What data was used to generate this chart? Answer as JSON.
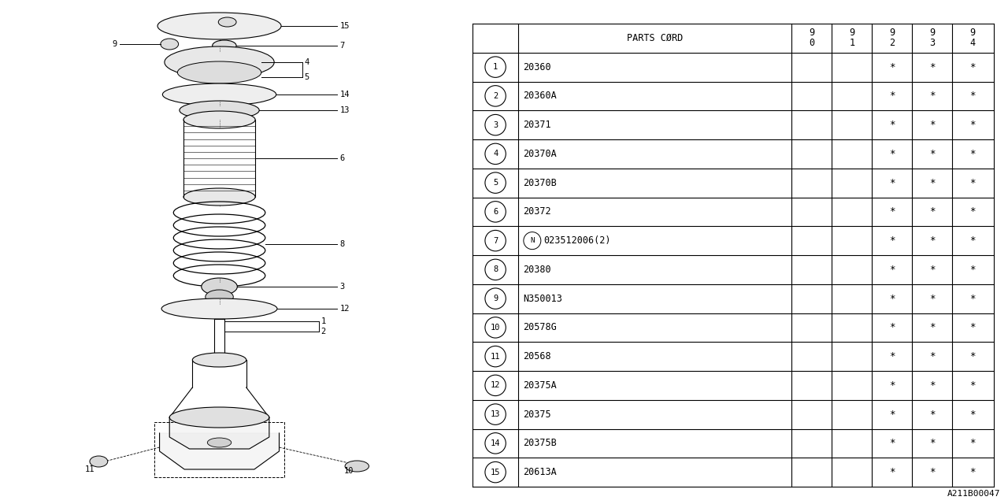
{
  "bg_color": "#ffffff",
  "line_color": "#000000",
  "text_color": "#000000",
  "diagram_label": "A211B00047",
  "table": {
    "header": [
      "",
      "PARTS CØRD",
      "9\n0",
      "9\n1",
      "9\n2",
      "9\n3",
      "9\n4"
    ],
    "rows": [
      [
        "1",
        "20360",
        "",
        "",
        "*",
        "*",
        "*"
      ],
      [
        "2",
        "20360A",
        "",
        "",
        "*",
        "*",
        "*"
      ],
      [
        "3",
        "20371",
        "",
        "",
        "*",
        "*",
        "*"
      ],
      [
        "4",
        "20370A",
        "",
        "",
        "*",
        "*",
        "*"
      ],
      [
        "5",
        "20370B",
        "",
        "",
        "*",
        "*",
        "*"
      ],
      [
        "6",
        "20372",
        "",
        "",
        "*",
        "*",
        "*"
      ],
      [
        "7",
        "023512006(2)",
        "",
        "",
        "*",
        "*",
        "*"
      ],
      [
        "8",
        "20380",
        "",
        "",
        "*",
        "*",
        "*"
      ],
      [
        "9",
        "N350013",
        "",
        "",
        "*",
        "*",
        "*"
      ],
      [
        "10",
        "20578G",
        "",
        "",
        "*",
        "*",
        "*"
      ],
      [
        "11",
        "20568",
        "",
        "",
        "*",
        "*",
        "*"
      ],
      [
        "12",
        "20375A",
        "",
        "",
        "*",
        "*",
        "*"
      ],
      [
        "13",
        "20375",
        "",
        "",
        "*",
        "*",
        "*"
      ],
      [
        "14",
        "20375B",
        "",
        "",
        "*",
        "*",
        "*"
      ],
      [
        "15",
        "20613A",
        "",
        "",
        "*",
        "*",
        "*"
      ]
    ]
  }
}
